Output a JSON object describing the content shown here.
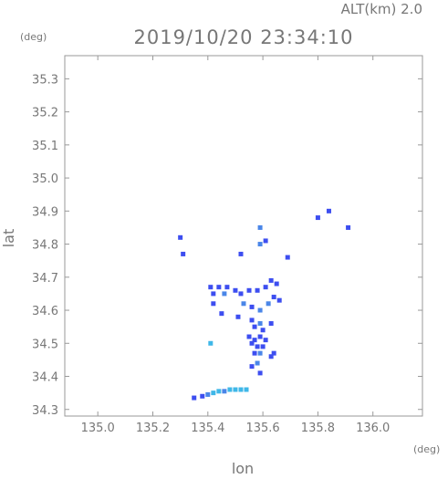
{
  "header": {
    "altitude_label": "ALT(km) 2.0",
    "timestamp": "2019/10/20 23:34:10"
  },
  "chart_data": {
    "type": "scatter",
    "title": "2019/10/20 23:34:10",
    "xlabel": "lon",
    "ylabel": "lat",
    "x_unit": "(deg)",
    "y_unit": "(deg)",
    "xlim": [
      134.88,
      136.18
    ],
    "ylim": [
      34.28,
      35.37
    ],
    "grid": false,
    "x_ticks": [
      {
        "value": 135.0,
        "label": "135.0"
      },
      {
        "value": 135.2,
        "label": "135.2"
      },
      {
        "value": 135.4,
        "label": "135.4"
      },
      {
        "value": 135.6,
        "label": "135.6"
      },
      {
        "value": 135.8,
        "label": "135.8"
      },
      {
        "value": 136.0,
        "label": "136.0"
      }
    ],
    "y_ticks": [
      {
        "value": 34.3,
        "label": "34.3"
      },
      {
        "value": 34.4,
        "label": "34.4"
      },
      {
        "value": 34.5,
        "label": "34.5"
      },
      {
        "value": 34.6,
        "label": "34.6"
      },
      {
        "value": 34.7,
        "label": "34.7"
      },
      {
        "value": 34.8,
        "label": "34.8"
      },
      {
        "value": 34.9,
        "label": "34.9"
      },
      {
        "value": 35.0,
        "label": "35.0"
      },
      {
        "value": 35.1,
        "label": "35.1"
      },
      {
        "value": 35.2,
        "label": "35.2"
      },
      {
        "value": 35.3,
        "label": "35.3"
      }
    ],
    "colors": {
      "frame": "#999999",
      "echo_strong": "#3d4ef0",
      "echo_medium": "#4a86e8",
      "echo_light": "#3fb7e8"
    },
    "points": [
      {
        "lon": 135.3,
        "lat": 34.82,
        "level": "strong"
      },
      {
        "lon": 135.31,
        "lat": 34.77,
        "level": "strong"
      },
      {
        "lon": 135.59,
        "lat": 34.85,
        "level": "medium"
      },
      {
        "lon": 135.8,
        "lat": 34.88,
        "level": "strong"
      },
      {
        "lon": 135.84,
        "lat": 34.9,
        "level": "strong"
      },
      {
        "lon": 135.91,
        "lat": 34.85,
        "level": "strong"
      },
      {
        "lon": 135.61,
        "lat": 34.81,
        "level": "strong"
      },
      {
        "lon": 135.59,
        "lat": 34.8,
        "level": "medium"
      },
      {
        "lon": 135.52,
        "lat": 34.77,
        "level": "strong"
      },
      {
        "lon": 135.69,
        "lat": 34.76,
        "level": "strong"
      },
      {
        "lon": 135.63,
        "lat": 34.69,
        "level": "strong"
      },
      {
        "lon": 135.65,
        "lat": 34.68,
        "level": "strong"
      },
      {
        "lon": 135.41,
        "lat": 34.67,
        "level": "strong"
      },
      {
        "lon": 135.44,
        "lat": 34.67,
        "level": "strong"
      },
      {
        "lon": 135.47,
        "lat": 34.67,
        "level": "strong"
      },
      {
        "lon": 135.5,
        "lat": 34.66,
        "level": "strong"
      },
      {
        "lon": 135.42,
        "lat": 34.65,
        "level": "strong"
      },
      {
        "lon": 135.46,
        "lat": 34.65,
        "level": "medium"
      },
      {
        "lon": 135.52,
        "lat": 34.65,
        "level": "strong"
      },
      {
        "lon": 135.55,
        "lat": 34.66,
        "level": "strong"
      },
      {
        "lon": 135.58,
        "lat": 34.66,
        "level": "strong"
      },
      {
        "lon": 135.61,
        "lat": 34.67,
        "level": "strong"
      },
      {
        "lon": 135.64,
        "lat": 34.64,
        "level": "strong"
      },
      {
        "lon": 135.66,
        "lat": 34.63,
        "level": "strong"
      },
      {
        "lon": 135.62,
        "lat": 34.62,
        "level": "medium"
      },
      {
        "lon": 135.42,
        "lat": 34.62,
        "level": "strong"
      },
      {
        "lon": 135.53,
        "lat": 34.62,
        "level": "medium"
      },
      {
        "lon": 135.56,
        "lat": 34.61,
        "level": "strong"
      },
      {
        "lon": 135.59,
        "lat": 34.6,
        "level": "medium"
      },
      {
        "lon": 135.45,
        "lat": 34.59,
        "level": "strong"
      },
      {
        "lon": 135.51,
        "lat": 34.58,
        "level": "strong"
      },
      {
        "lon": 135.56,
        "lat": 34.57,
        "level": "strong"
      },
      {
        "lon": 135.59,
        "lat": 34.56,
        "level": "medium"
      },
      {
        "lon": 135.63,
        "lat": 34.56,
        "level": "strong"
      },
      {
        "lon": 135.57,
        "lat": 34.55,
        "level": "strong"
      },
      {
        "lon": 135.6,
        "lat": 34.54,
        "level": "strong"
      },
      {
        "lon": 135.55,
        "lat": 34.52,
        "level": "strong"
      },
      {
        "lon": 135.57,
        "lat": 34.51,
        "level": "strong"
      },
      {
        "lon": 135.59,
        "lat": 34.52,
        "level": "strong"
      },
      {
        "lon": 135.61,
        "lat": 34.51,
        "level": "strong"
      },
      {
        "lon": 135.56,
        "lat": 34.5,
        "level": "strong"
      },
      {
        "lon": 135.58,
        "lat": 34.49,
        "level": "strong"
      },
      {
        "lon": 135.6,
        "lat": 34.49,
        "level": "strong"
      },
      {
        "lon": 135.57,
        "lat": 34.47,
        "level": "strong"
      },
      {
        "lon": 135.59,
        "lat": 34.47,
        "level": "medium"
      },
      {
        "lon": 135.64,
        "lat": 34.47,
        "level": "strong"
      },
      {
        "lon": 135.63,
        "lat": 34.46,
        "level": "strong"
      },
      {
        "lon": 135.41,
        "lat": 34.5,
        "level": "light"
      },
      {
        "lon": 135.58,
        "lat": 34.44,
        "level": "medium"
      },
      {
        "lon": 135.59,
        "lat": 34.41,
        "level": "strong"
      },
      {
        "lon": 135.56,
        "lat": 34.43,
        "level": "strong"
      },
      {
        "lon": 135.35,
        "lat": 34.335,
        "level": "strong"
      },
      {
        "lon": 135.38,
        "lat": 34.34,
        "level": "strong"
      },
      {
        "lon": 135.4,
        "lat": 34.345,
        "level": "medium"
      },
      {
        "lon": 135.42,
        "lat": 34.35,
        "level": "light"
      },
      {
        "lon": 135.44,
        "lat": 34.355,
        "level": "light"
      },
      {
        "lon": 135.46,
        "lat": 34.355,
        "level": "medium"
      },
      {
        "lon": 135.48,
        "lat": 34.36,
        "level": "light"
      },
      {
        "lon": 135.5,
        "lat": 34.36,
        "level": "light"
      },
      {
        "lon": 135.52,
        "lat": 34.36,
        "level": "light"
      },
      {
        "lon": 135.54,
        "lat": 34.36,
        "level": "light"
      }
    ]
  }
}
